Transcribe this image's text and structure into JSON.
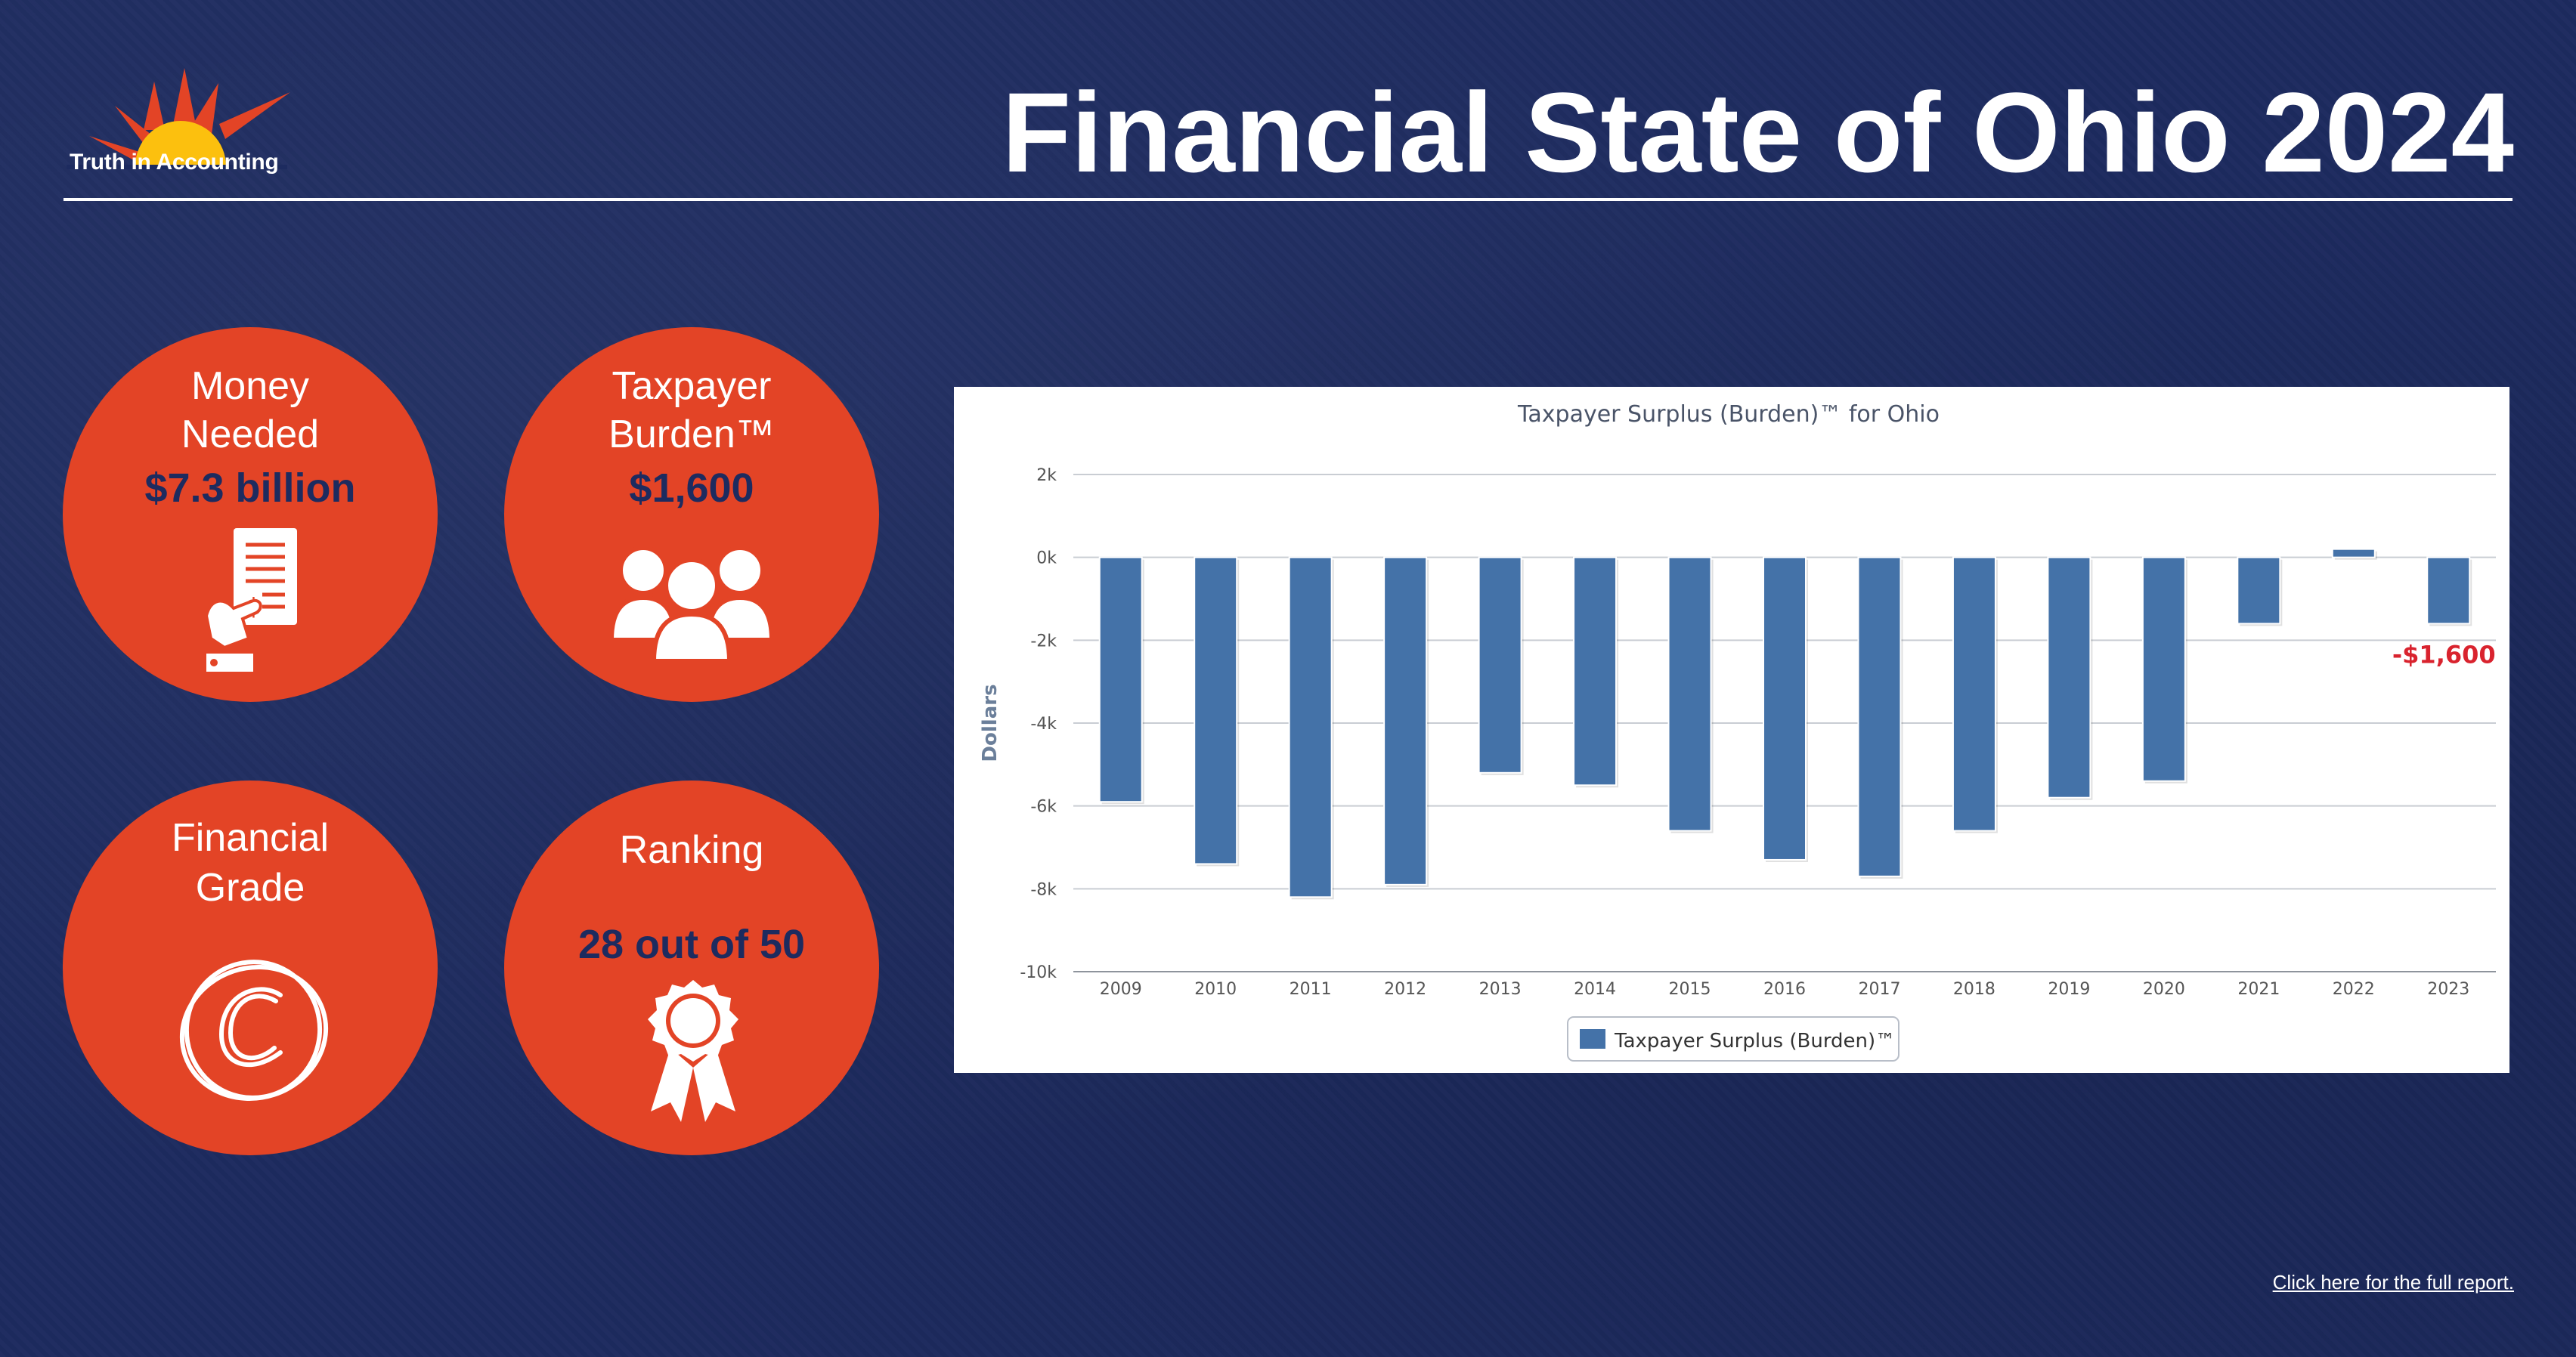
{
  "brand": {
    "name": "Truth in Accounting",
    "colors": {
      "background": "#1d2b5f",
      "accent": "#e34426",
      "bar": "#4472a8",
      "highlight": "#d9232e"
    }
  },
  "header": {
    "title": "Financial State of Ohio 2024"
  },
  "metrics": {
    "money_needed": {
      "label_line1": "Money",
      "label_line2": "Needed",
      "value": "$7.3 billion",
      "icon": "receipt-hand-icon"
    },
    "taxpayer_burden": {
      "label_line1": "Taxpayer",
      "label_line2": "Burden™",
      "value": "$1,600",
      "icon": "people-group-icon"
    },
    "financial_grade": {
      "label_line1": "Financial",
      "label_line2": "Grade",
      "value": "C",
      "icon": "grade-c-icon"
    },
    "ranking": {
      "label": "Ranking",
      "value": "28 out of 50",
      "icon": "award-ribbon-icon"
    }
  },
  "chart_data": {
    "type": "bar",
    "title": "Taxpayer Surplus (Burden)™ for Ohio",
    "xlabel": "",
    "ylabel": "Dollars",
    "categories": [
      "2009",
      "2010",
      "2011",
      "2012",
      "2013",
      "2014",
      "2015",
      "2016",
      "2017",
      "2018",
      "2019",
      "2020",
      "2021",
      "2022",
      "2023"
    ],
    "series": [
      {
        "name": "Taxpayer Surplus (Burden)™",
        "values": [
          -5900,
          -7400,
          -8200,
          -7900,
          -5200,
          -5500,
          -6600,
          -7300,
          -7700,
          -6600,
          -5800,
          -5400,
          -1600,
          200,
          -1600
        ]
      }
    ],
    "ylim": [
      -10000,
      2000
    ],
    "yticks": [
      2000,
      0,
      -2000,
      -4000,
      -6000,
      -8000,
      -10000
    ],
    "ytick_labels": [
      "2k",
      "0k",
      "-2k",
      "-4k",
      "-6k",
      "-8k",
      "-10k"
    ],
    "grid": true,
    "legend_position": "bottom",
    "annotations": [
      {
        "category": "2023",
        "text": "-$1,600"
      }
    ]
  },
  "footer": {
    "link_text": "Click here for the full report."
  }
}
